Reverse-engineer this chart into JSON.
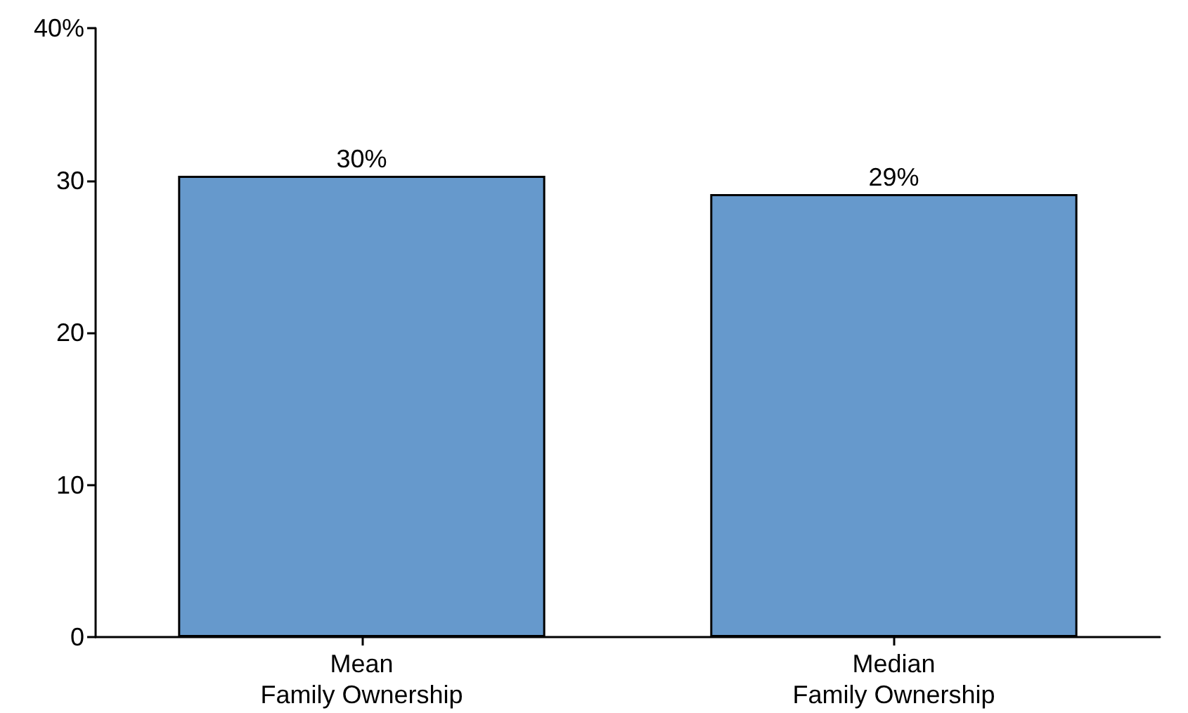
{
  "chart_data": {
    "type": "bar",
    "categories": [
      "Mean\nFamily Ownership",
      "Median\nFamily Ownership"
    ],
    "values": [
      30.3,
      29.1
    ],
    "color": "#6699cc",
    "value_labels": [
      "30%",
      "29%"
    ],
    "ylim": [
      0,
      40
    ],
    "yticks": [
      0,
      10,
      20,
      30,
      {
        "value": 40,
        "label": "40%"
      }
    ],
    "grid": false
  }
}
